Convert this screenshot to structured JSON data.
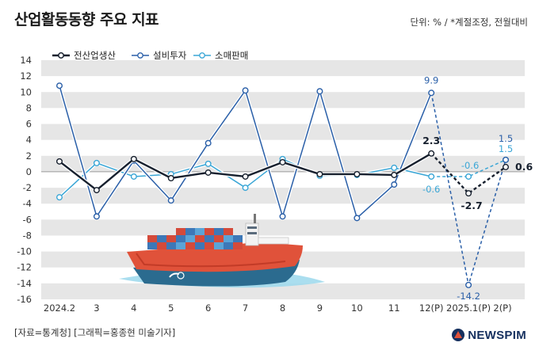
{
  "header": {
    "title": "산업활동동향 주요 지표",
    "unit": "단위: % / *계절조정, 전월대비"
  },
  "footer": {
    "source": "[자료=통계청] [그래픽=홍종현 미술기자]",
    "logo_text": "NEWSPIM"
  },
  "colors": {
    "production": "#17202e",
    "investment": "#2a5fa8",
    "retail": "#3aa6d6",
    "band": "#e6e6e6",
    "hull": "#e0523a",
    "water": "#8fd4ea"
  },
  "chart_data": {
    "type": "line",
    "title": "산업활동동향 주요 지표",
    "categories": [
      "2024.2",
      "3",
      "4",
      "5",
      "6",
      "7",
      "8",
      "9",
      "10",
      "11",
      "12(P)",
      "2025.1(P)",
      "2(P)"
    ],
    "ylim": [
      -16,
      14
    ],
    "yticks": [
      "14",
      "12",
      "10",
      "8",
      "6",
      "4",
      "2",
      "0",
      "-2",
      "-4",
      "-6",
      "-8",
      "-10",
      "-12",
      "-14",
      "-16"
    ],
    "grid": "horizontal bands",
    "legend": "top-left",
    "series": [
      {
        "name": "전산업생산",
        "key": "production",
        "values": [
          1.3,
          -2.3,
          1.6,
          -0.8,
          -0.1,
          -0.6,
          1.2,
          -0.3,
          -0.3,
          -0.4,
          2.3,
          -2.7,
          0.6
        ]
      },
      {
        "name": "설비투자",
        "key": "investment",
        "values": [
          10.8,
          -5.6,
          1.4,
          -3.6,
          3.6,
          10.2,
          -5.6,
          10.1,
          -5.8,
          -1.6,
          9.9,
          -14.2,
          1.5
        ]
      },
      {
        "name": "소매판매",
        "key": "retail",
        "values": [
          -3.2,
          1.1,
          -0.6,
          -0.3,
          1.0,
          -2.0,
          1.6,
          -0.5,
          -0.4,
          0.5,
          -0.6,
          -0.6,
          1.5
        ]
      }
    ],
    "annotations": [
      {
        "series": "production",
        "index": 10,
        "text": "2.3"
      },
      {
        "series": "production",
        "index": 11,
        "text": "-2.7"
      },
      {
        "series": "production",
        "index": 12,
        "text": "0.6"
      },
      {
        "series": "investment",
        "index": 10,
        "text": "9.9"
      },
      {
        "series": "investment",
        "index": 11,
        "text": "-14.2"
      },
      {
        "series": "investment",
        "index": 12,
        "text": "1.5"
      },
      {
        "series": "retail",
        "index": 10,
        "text": "-0.6"
      },
      {
        "series": "retail",
        "index": 11,
        "text": "-0.6"
      },
      {
        "series": "retail",
        "index": 12,
        "text": "1.5"
      }
    ],
    "dashed_from_index": 10
  }
}
